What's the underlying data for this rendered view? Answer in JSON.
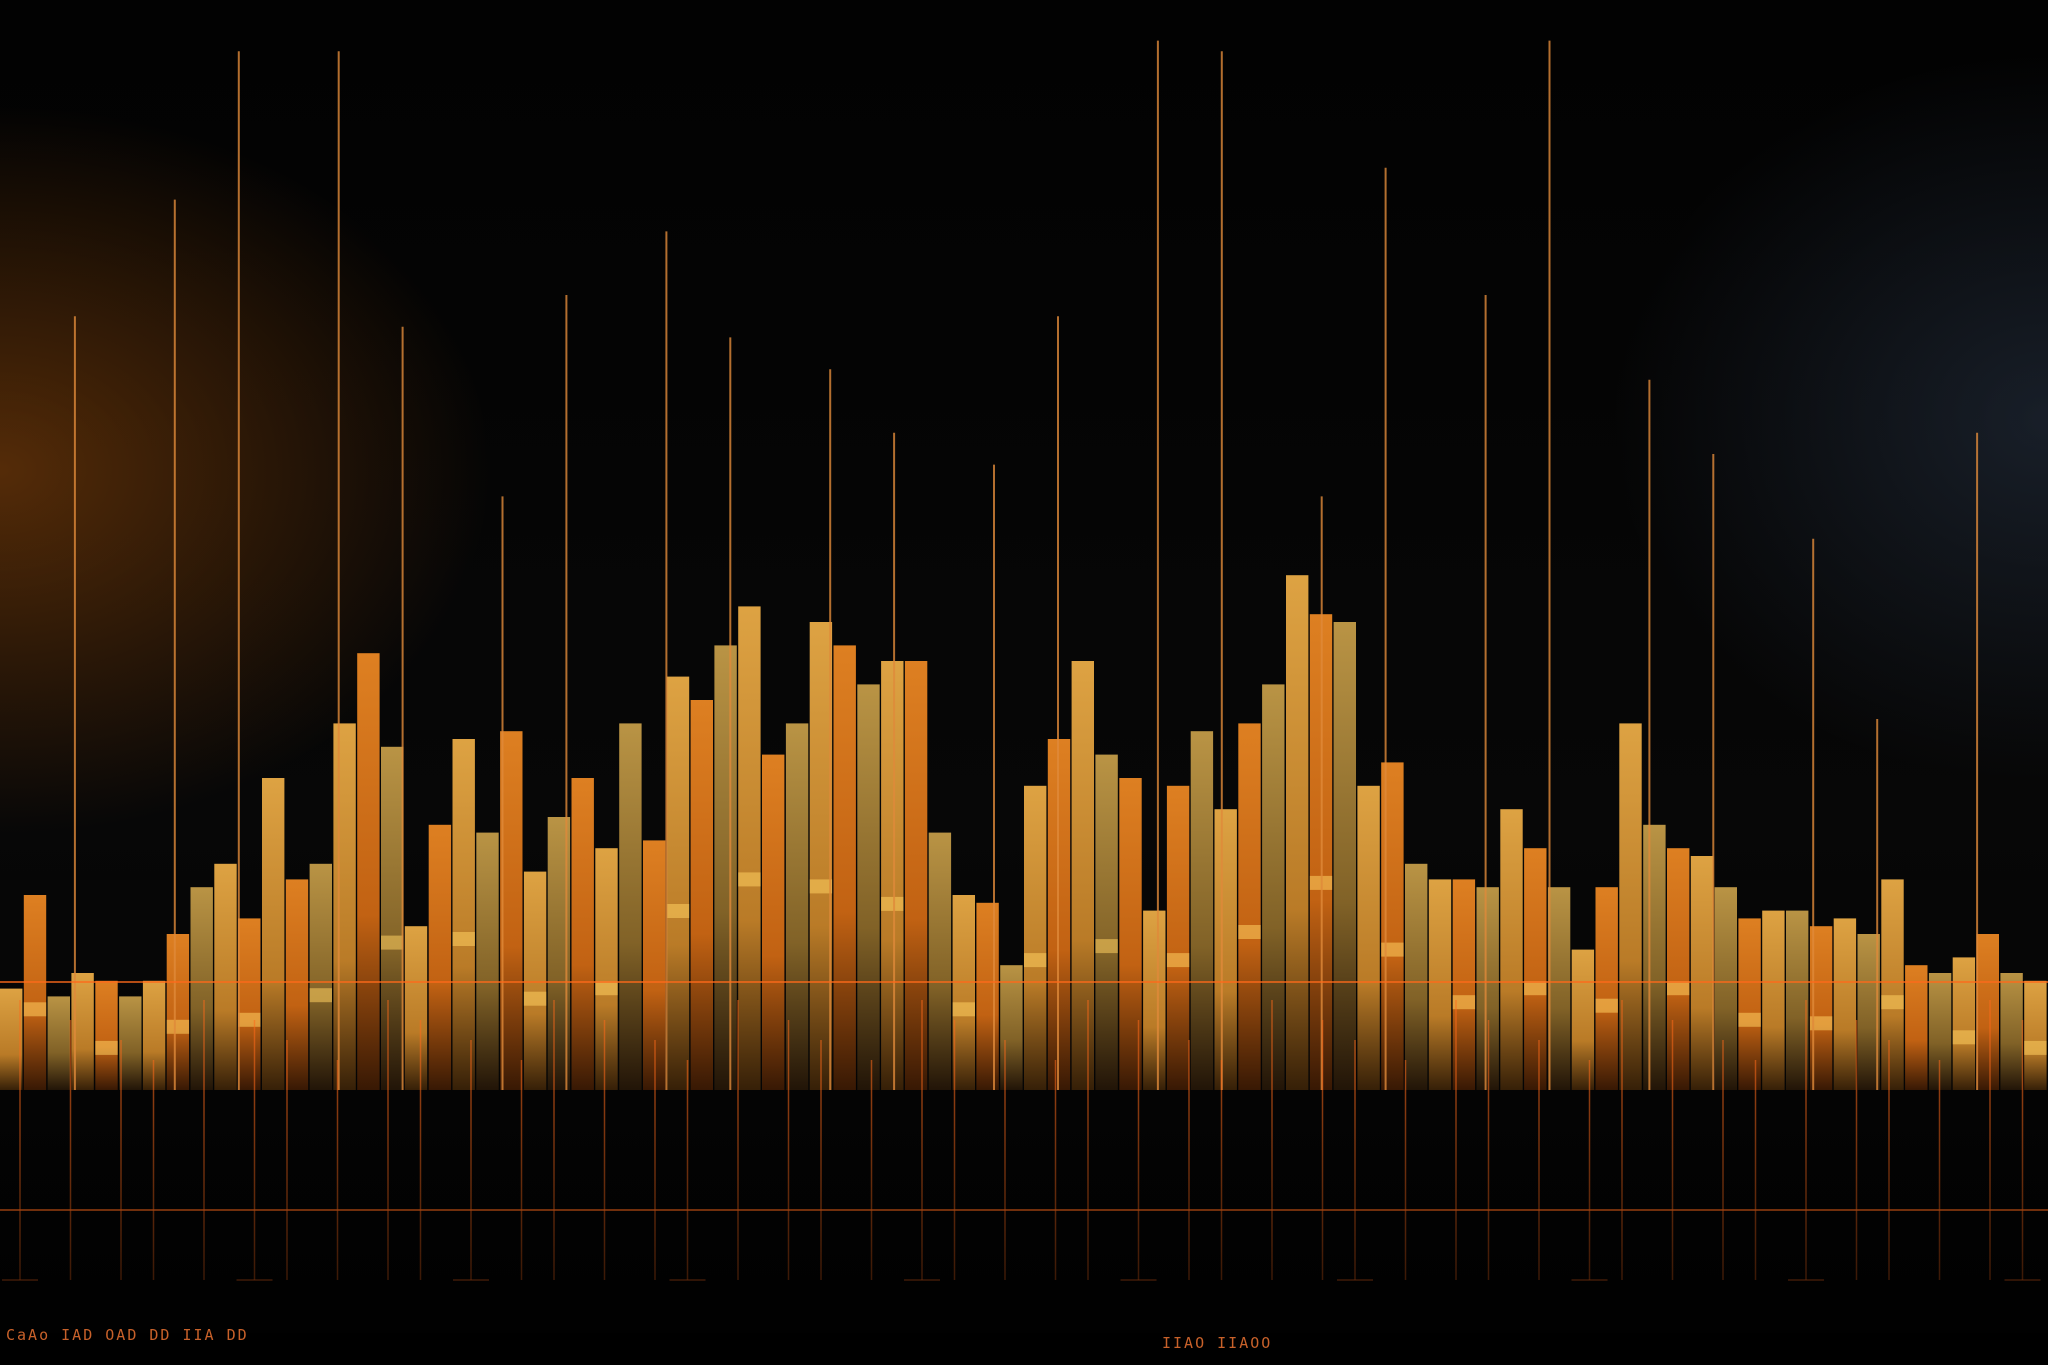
{
  "scene": {
    "description_type": "abstract glowing bar graphic",
    "colors": {
      "background": "#030303",
      "bar_gold": "#e8a43a",
      "bar_orange": "#e8771c",
      "bar_amber": "#c99a3c",
      "line_orange": "#ff6a1a",
      "highlight": "#ffd060"
    }
  },
  "captions": {
    "left": "CaAo IAD OAD DD IIA DD",
    "center": "IIAO IIAOO"
  },
  "bars": [
    {
      "h": 0.13,
      "tone": 0
    },
    {
      "h": 0.25,
      "tone": 1
    },
    {
      "h": 0.12,
      "tone": 2
    },
    {
      "h": 0.15,
      "tone": 0
    },
    {
      "h": 0.14,
      "tone": 1
    },
    {
      "h": 0.12,
      "tone": 2
    },
    {
      "h": 0.14,
      "tone": 0
    },
    {
      "h": 0.2,
      "tone": 1
    },
    {
      "h": 0.26,
      "tone": 2
    },
    {
      "h": 0.29,
      "tone": 0
    },
    {
      "h": 0.22,
      "tone": 1
    },
    {
      "h": 0.4,
      "tone": 0
    },
    {
      "h": 0.27,
      "tone": 1
    },
    {
      "h": 0.29,
      "tone": 2
    },
    {
      "h": 0.47,
      "tone": 0
    },
    {
      "h": 0.56,
      "tone": 1
    },
    {
      "h": 0.44,
      "tone": 2
    },
    {
      "h": 0.21,
      "tone": 0
    },
    {
      "h": 0.34,
      "tone": 1
    },
    {
      "h": 0.45,
      "tone": 0
    },
    {
      "h": 0.33,
      "tone": 2
    },
    {
      "h": 0.46,
      "tone": 1
    },
    {
      "h": 0.28,
      "tone": 0
    },
    {
      "h": 0.35,
      "tone": 2
    },
    {
      "h": 0.4,
      "tone": 1
    },
    {
      "h": 0.31,
      "tone": 0
    },
    {
      "h": 0.47,
      "tone": 2
    },
    {
      "h": 0.32,
      "tone": 1
    },
    {
      "h": 0.53,
      "tone": 0
    },
    {
      "h": 0.5,
      "tone": 1
    },
    {
      "h": 0.57,
      "tone": 2
    },
    {
      "h": 0.62,
      "tone": 0
    },
    {
      "h": 0.43,
      "tone": 1
    },
    {
      "h": 0.47,
      "tone": 2
    },
    {
      "h": 0.6,
      "tone": 0
    },
    {
      "h": 0.57,
      "tone": 1
    },
    {
      "h": 0.52,
      "tone": 2
    },
    {
      "h": 0.55,
      "tone": 0
    },
    {
      "h": 0.55,
      "tone": 1
    },
    {
      "h": 0.33,
      "tone": 2
    },
    {
      "h": 0.25,
      "tone": 0
    },
    {
      "h": 0.24,
      "tone": 1
    },
    {
      "h": 0.16,
      "tone": 2
    },
    {
      "h": 0.39,
      "tone": 0
    },
    {
      "h": 0.45,
      "tone": 1
    },
    {
      "h": 0.55,
      "tone": 0
    },
    {
      "h": 0.43,
      "tone": 2
    },
    {
      "h": 0.4,
      "tone": 1
    },
    {
      "h": 0.23,
      "tone": 0
    },
    {
      "h": 0.39,
      "tone": 1
    },
    {
      "h": 0.46,
      "tone": 2
    },
    {
      "h": 0.36,
      "tone": 0
    },
    {
      "h": 0.47,
      "tone": 1
    },
    {
      "h": 0.52,
      "tone": 2
    },
    {
      "h": 0.66,
      "tone": 0
    },
    {
      "h": 0.61,
      "tone": 1
    },
    {
      "h": 0.6,
      "tone": 2
    },
    {
      "h": 0.39,
      "tone": 0
    },
    {
      "h": 0.42,
      "tone": 1
    },
    {
      "h": 0.29,
      "tone": 2
    },
    {
      "h": 0.27,
      "tone": 0
    },
    {
      "h": 0.27,
      "tone": 1
    },
    {
      "h": 0.26,
      "tone": 2
    },
    {
      "h": 0.36,
      "tone": 0
    },
    {
      "h": 0.31,
      "tone": 1
    },
    {
      "h": 0.26,
      "tone": 2
    },
    {
      "h": 0.18,
      "tone": 0
    },
    {
      "h": 0.26,
      "tone": 1
    },
    {
      "h": 0.47,
      "tone": 0
    },
    {
      "h": 0.34,
      "tone": 2
    },
    {
      "h": 0.31,
      "tone": 1
    },
    {
      "h": 0.3,
      "tone": 0
    },
    {
      "h": 0.26,
      "tone": 2
    },
    {
      "h": 0.22,
      "tone": 1
    },
    {
      "h": 0.23,
      "tone": 0
    },
    {
      "h": 0.23,
      "tone": 2
    },
    {
      "h": 0.21,
      "tone": 1
    },
    {
      "h": 0.22,
      "tone": 0
    },
    {
      "h": 0.2,
      "tone": 2
    },
    {
      "h": 0.27,
      "tone": 0
    },
    {
      "h": 0.16,
      "tone": 1
    },
    {
      "h": 0.15,
      "tone": 2
    },
    {
      "h": 0.17,
      "tone": 0
    },
    {
      "h": 0.2,
      "tone": 1
    },
    {
      "h": 0.15,
      "tone": 2
    },
    {
      "h": 0.14,
      "tone": 0
    }
  ],
  "spikes": [
    {
      "h": 0.73
    },
    {
      "h": 0.84
    },
    {
      "h": 0.98
    },
    {
      "h": 0.98
    },
    {
      "h": 0.72
    },
    {
      "h": 0.56
    },
    {
      "h": 0.75
    },
    {
      "h": 0.81
    },
    {
      "h": 0.71
    },
    {
      "h": 0.68
    },
    {
      "h": 0.62
    },
    {
      "h": 0.59
    },
    {
      "h": 0.73
    },
    {
      "h": 0.99
    },
    {
      "h": 0.98
    },
    {
      "h": 0.56
    },
    {
      "h": 0.87
    },
    {
      "h": 0.75
    },
    {
      "h": 0.99
    },
    {
      "h": 0.67
    },
    {
      "h": 0.6
    },
    {
      "h": 0.52
    },
    {
      "h": 0.35
    },
    {
      "h": 0.62
    }
  ]
}
